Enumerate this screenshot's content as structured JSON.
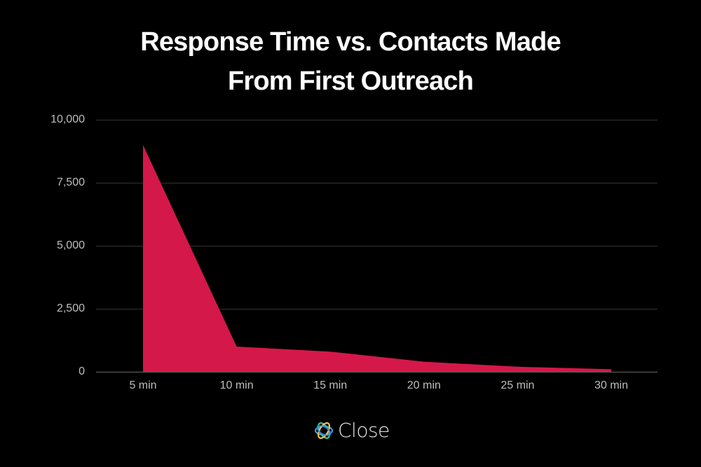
{
  "chart_data": {
    "type": "area",
    "title": "Response Time vs. Contacts Made From First Outreach",
    "title_lines": [
      "Response Time vs. Contacts Made",
      "From First Outreach"
    ],
    "xlabel": "",
    "ylabel": "",
    "categories": [
      "5 min",
      "10 min",
      "15 min",
      "20 min",
      "25 min",
      "30 min"
    ],
    "series": [
      {
        "name": "Contacts Made",
        "values": [
          9000,
          1000,
          800,
          400,
          200,
          100
        ],
        "color": "#d4184a"
      }
    ],
    "yticks": [
      "10,000",
      "7,500",
      "5,000",
      "2,500",
      "0"
    ],
    "ylim": [
      0,
      10000
    ],
    "grid": true,
    "legend": "none"
  },
  "brand": {
    "name": "Close"
  }
}
